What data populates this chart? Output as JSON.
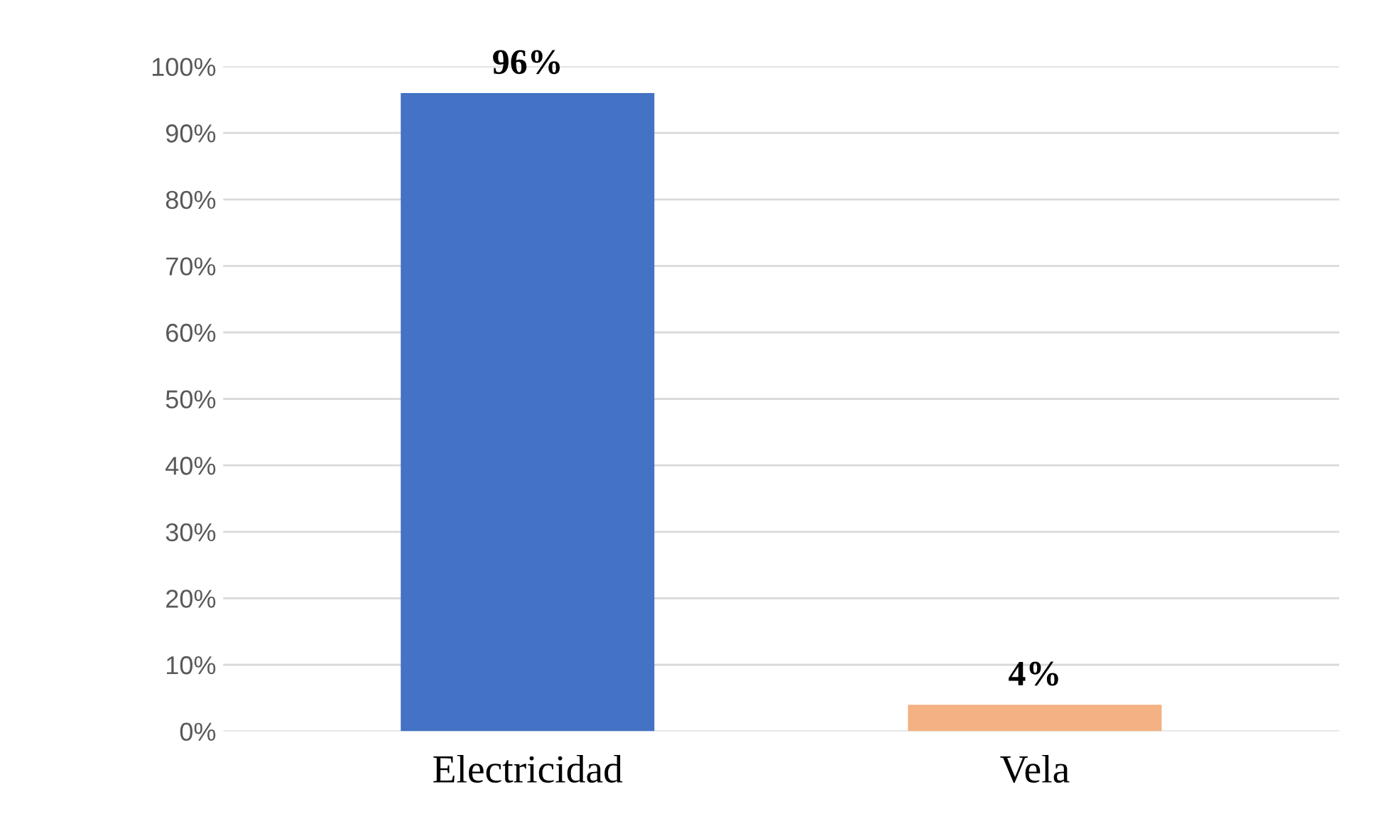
{
  "chart_data": {
    "type": "bar",
    "categories": [
      "Electricidad",
      "Vela"
    ],
    "values": [
      96,
      4
    ],
    "colors": [
      "#4472c4",
      "#f4b183"
    ],
    "value_labels": [
      "96%",
      "4%"
    ],
    "ylim": [
      0,
      100
    ],
    "yticks": [
      {
        "value": 0,
        "label": "0%"
      },
      {
        "value": 10,
        "label": "10%"
      },
      {
        "value": 20,
        "label": "20%"
      },
      {
        "value": 30,
        "label": "30%"
      },
      {
        "value": 40,
        "label": "40%"
      },
      {
        "value": 50,
        "label": "50%"
      },
      {
        "value": 60,
        "label": "60%"
      },
      {
        "value": 70,
        "label": "70%"
      },
      {
        "value": 80,
        "label": "80%"
      },
      {
        "value": 90,
        "label": "90%"
      },
      {
        "value": 100,
        "label": "100%"
      }
    ],
    "grid": "y"
  }
}
